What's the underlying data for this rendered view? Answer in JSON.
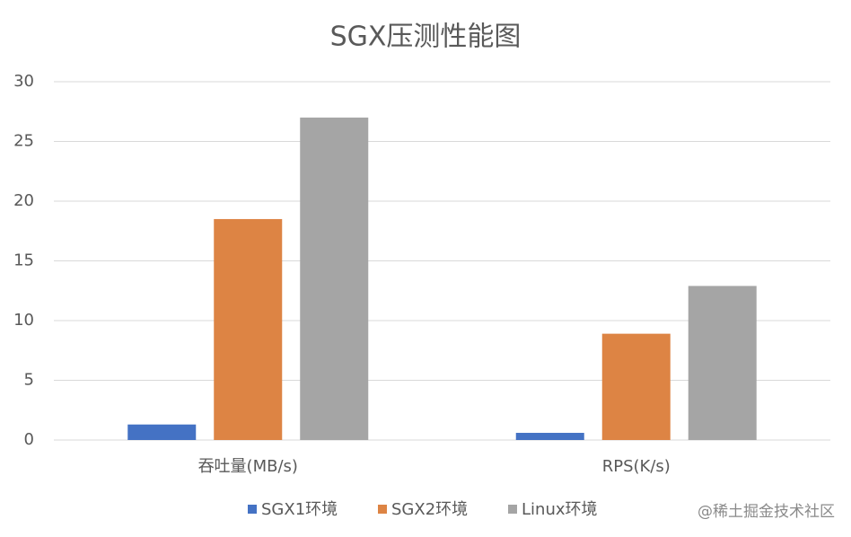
{
  "chart_data": {
    "type": "bar",
    "title": "SGX压测性能图",
    "categories": [
      "吞吐量(MB/s)",
      "RPS(K/s)"
    ],
    "series": [
      {
        "name": "SGX1环境",
        "color": "#4472c4",
        "values": [
          1.3,
          0.6
        ]
      },
      {
        "name": "SGX2环境",
        "color": "#dd8444",
        "values": [
          18.5,
          8.9
        ]
      },
      {
        "name": "Linux环境",
        "color": "#a5a5a5",
        "values": [
          27,
          12.9
        ]
      }
    ],
    "ylim": [
      0,
      30
    ],
    "yticks": [
      0,
      5,
      10,
      15,
      20,
      25,
      30
    ],
    "grid": true,
    "legend": "bottom",
    "watermark": "@稀土掘金技术社区"
  }
}
